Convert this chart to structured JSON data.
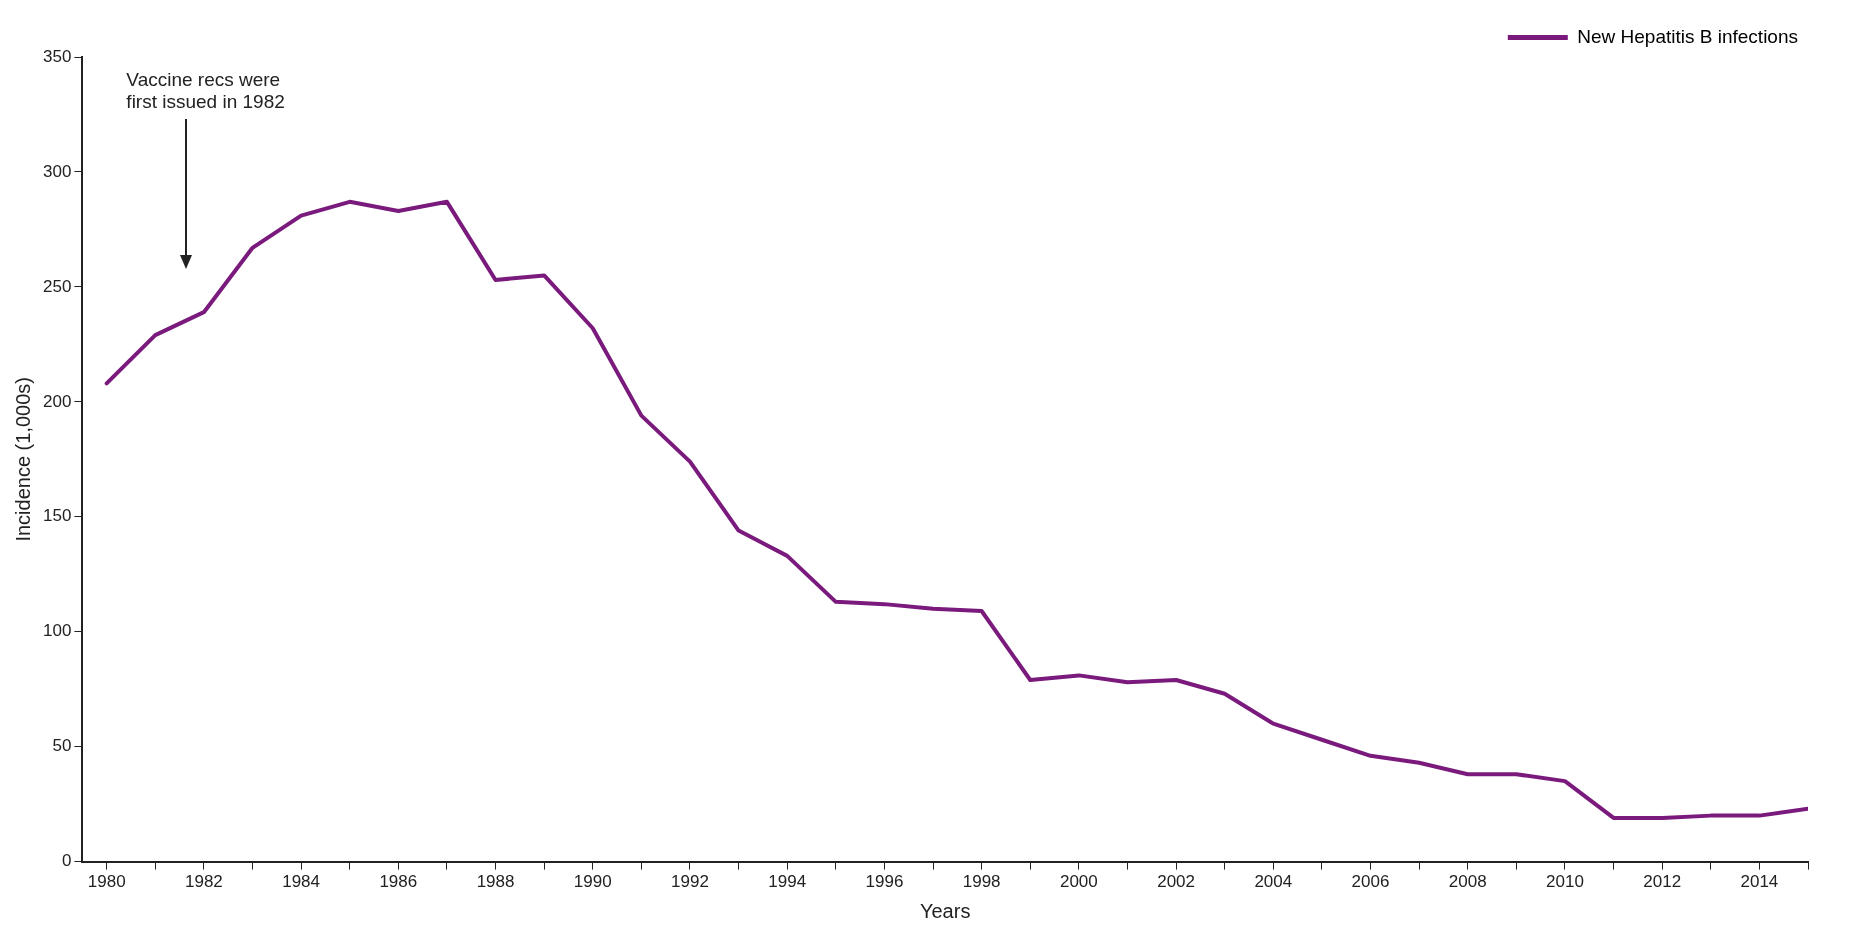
{
  "chart_data": {
    "type": "line",
    "xlabel": "Years",
    "ylabel": "Incidence (1,000s)",
    "x": [
      1980,
      1981,
      1982,
      1983,
      1984,
      1985,
      1986,
      1987,
      1988,
      1989,
      1990,
      1991,
      1992,
      1993,
      1994,
      1995,
      1996,
      1997,
      1998,
      1999,
      2000,
      2001,
      2002,
      2003,
      2004,
      2005,
      2006,
      2007,
      2008,
      2009,
      2010,
      2011,
      2012,
      2013,
      2014,
      2015
    ],
    "series": [
      {
        "name": "New Hepatitis B infections",
        "color": "#7a1a7d",
        "values": [
          208,
          229,
          239,
          267,
          281,
          287,
          283,
          287,
          253,
          255,
          232,
          194,
          174,
          144,
          133,
          113,
          112,
          110,
          109,
          79,
          81,
          78,
          79,
          73,
          60,
          53,
          46,
          43,
          38,
          38,
          35,
          19,
          19,
          20,
          20,
          23
        ]
      }
    ],
    "xlim": [
      1979.5,
      2015
    ],
    "xticks": [
      1980,
      {
        "value": 1981,
        "label": null
      },
      1982,
      {
        "value": 1983,
        "label": null
      },
      1984,
      {
        "value": 1985,
        "label": null
      },
      1986,
      {
        "value": 1987,
        "label": null
      },
      1988,
      {
        "value": 1989,
        "label": null
      },
      1990,
      {
        "value": 1991,
        "label": null
      },
      1992,
      {
        "value": 1993,
        "label": null
      },
      1994,
      {
        "value": 1995,
        "label": null
      },
      1996,
      {
        "value": 1997,
        "label": null
      },
      1998,
      {
        "value": 1999,
        "label": null
      },
      2000,
      {
        "value": 2001,
        "label": null
      },
      2002,
      {
        "value": 2003,
        "label": null
      },
      2004,
      {
        "value": 2005,
        "label": null
      },
      2006,
      {
        "value": 2007,
        "label": null
      },
      2008,
      {
        "value": 2009,
        "label": null
      },
      2010,
      {
        "value": 2011,
        "label": null
      },
      2012,
      {
        "value": 2013,
        "label": null
      },
      2014,
      {
        "value": 2015,
        "label": null
      }
    ],
    "ylim": [
      0,
      350
    ],
    "yticks": [
      0,
      50,
      100,
      150,
      200,
      250,
      300,
      350
    ],
    "annotations": [
      "Vaccine recs were first issued in 1982"
    ],
    "grid": false,
    "legend": "top right",
    "marker": "none",
    "line_style": "solid"
  }
}
